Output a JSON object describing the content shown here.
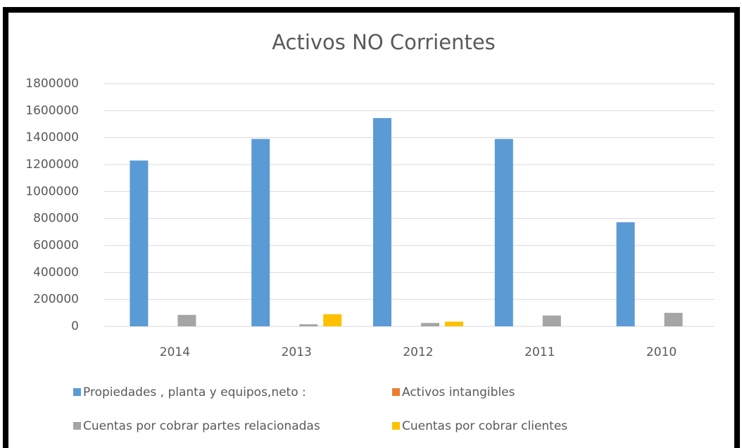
{
  "chart_data": {
    "type": "bar",
    "title": "Activos NO Corrientes",
    "categories": [
      "2014",
      "2013",
      "2012",
      "2011",
      "2010"
    ],
    "series": [
      {
        "name": "Propiedades , planta y equipos,neto :",
        "color": "#5b9bd5",
        "values": [
          1230000,
          1390000,
          1545000,
          1390000,
          772000
        ]
      },
      {
        "name": "Activos intangibles",
        "color": "#ed7d31",
        "values": [
          0,
          0,
          0,
          0,
          0
        ]
      },
      {
        "name": "Cuentas por cobrar partes relacionadas",
        "color": "#a5a5a5",
        "values": [
          85000,
          15000,
          25000,
          80000,
          100000
        ]
      },
      {
        "name": "Cuentas por cobrar clientes",
        "color": "#ffc000",
        "values": [
          0,
          90000,
          35000,
          0,
          0
        ]
      }
    ],
    "ylim": [
      0,
      1800000
    ],
    "yticks": [
      0,
      200000,
      400000,
      600000,
      800000,
      1000000,
      1200000,
      1400000,
      1600000,
      1800000
    ],
    "grid": true,
    "legend": "bottom"
  }
}
